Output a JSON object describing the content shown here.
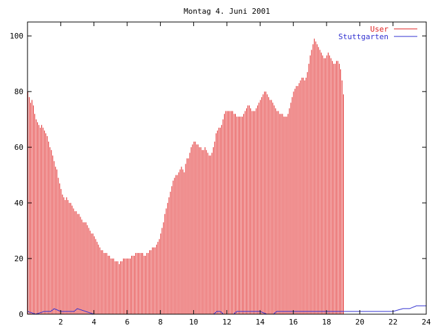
{
  "chart_data": {
    "type": "bar",
    "title": "Montag 4. Juni 2001",
    "xlabel": "",
    "ylabel": "",
    "xlim": [
      0,
      24
    ],
    "ylim": [
      0,
      105
    ],
    "x_ticks": [
      2,
      4,
      6,
      8,
      10,
      12,
      14,
      16,
      18,
      20,
      22,
      24
    ],
    "y_ticks": [
      0,
      20,
      40,
      60,
      80,
      100
    ],
    "grid": false,
    "legend_position": "top-right",
    "series": [
      {
        "name": "User",
        "type": "impulses",
        "color": "#e02020",
        "x_step": 0.0833,
        "values": [
          80,
          78,
          76,
          77,
          75,
          72,
          70,
          69,
          68,
          67,
          68,
          67,
          66,
          65,
          64,
          62,
          60,
          59,
          57,
          55,
          53,
          52,
          49,
          47,
          45,
          43,
          42,
          41,
          42,
          41,
          40,
          40,
          39,
          38,
          37,
          37,
          36,
          36,
          35,
          34,
          33,
          33,
          33,
          32,
          31,
          30,
          29,
          29,
          28,
          27,
          26,
          25,
          24,
          23,
          23,
          22,
          22,
          22,
          21,
          21,
          20,
          20,
          20,
          19,
          19,
          19,
          18,
          19,
          19,
          20,
          20,
          20,
          20,
          20,
          20,
          21,
          21,
          21,
          22,
          22,
          22,
          22,
          22,
          22,
          21,
          21,
          22,
          22,
          23,
          23,
          24,
          24,
          24,
          25,
          26,
          27,
          29,
          31,
          33,
          36,
          38,
          40,
          42,
          44,
          46,
          48,
          49,
          50,
          50,
          51,
          52,
          53,
          52,
          51,
          54,
          56,
          56,
          58,
          60,
          61,
          62,
          62,
          61,
          61,
          60,
          60,
          59,
          59,
          60,
          59,
          58,
          57,
          57,
          58,
          60,
          62,
          65,
          66,
          67,
          67,
          68,
          70,
          72,
          73,
          73,
          73,
          73,
          73,
          73,
          72,
          72,
          71,
          71,
          71,
          71,
          71,
          72,
          73,
          74,
          75,
          75,
          74,
          73,
          73,
          73,
          74,
          75,
          76,
          77,
          78,
          79,
          80,
          80,
          79,
          78,
          77,
          77,
          76,
          75,
          74,
          73,
          73,
          72,
          72,
          72,
          71,
          71,
          71,
          72,
          74,
          76,
          78,
          80,
          81,
          82,
          82,
          83,
          84,
          85,
          85,
          84,
          85,
          87,
          90,
          93,
          95,
          97,
          99,
          98,
          97,
          96,
          95,
          94,
          93,
          92,
          92,
          93,
          94,
          93,
          92,
          91,
          90,
          90,
          91,
          91,
          90,
          88,
          84,
          79
        ]
      },
      {
        "name": "Stuttgarten",
        "type": "line",
        "color": "#3030d0",
        "x": [
          0,
          0.5,
          1.0,
          1.4,
          1.6,
          2.0,
          2.8,
          3.0,
          3.5,
          4.0,
          11.2,
          11.4,
          11.6,
          11.8,
          12.4,
          12.6,
          13.0,
          14.0,
          14.4,
          14.8,
          15.0,
          16.0,
          18.0,
          20.0,
          21.0,
          21.6,
          22.0,
          22.6,
          23.0,
          23.4,
          24.0
        ],
        "values": [
          1,
          0,
          1,
          1,
          2,
          1,
          1,
          2,
          1,
          0,
          0,
          1,
          1,
          0,
          0,
          1,
          1,
          1,
          0,
          0,
          1,
          1,
          1,
          1,
          1,
          1,
          1,
          2,
          2,
          3,
          3
        ]
      }
    ]
  }
}
